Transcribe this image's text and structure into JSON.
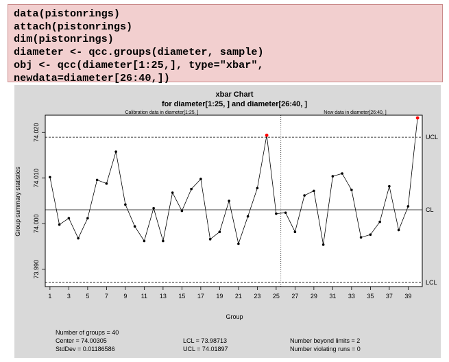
{
  "code": {
    "lines": [
      "data(pistonrings)",
      "attach(pistonrings)",
      "dim(pistonrings)",
      "diameter <- qcc.groups(diameter, sample)",
      "obj <- qcc(diameter[1:25,], type=\"xbar\",",
      "newdata=diameter[26:40,])"
    ]
  },
  "chart_data": {
    "type": "line",
    "title": "xbar Chart",
    "subtitle": "for diameter[1:25, ] and diameter[26:40, ]",
    "calibration_label": "Calibration data in diameter[1:25, ]",
    "newdata_label": "New data in diameter[26:40, ]",
    "xlabel": "Group",
    "ylabel": "Group summary statistics",
    "xlim": [
      0.5,
      40.5
    ],
    "ylim": [
      73.9862,
      74.0238
    ],
    "x_ticks": [
      1,
      3,
      5,
      7,
      9,
      11,
      13,
      15,
      17,
      19,
      21,
      23,
      25,
      27,
      29,
      31,
      33,
      35,
      37,
      39
    ],
    "y_ticks": [
      73.99,
      74.0,
      74.01,
      74.02
    ],
    "y_tick_labels": [
      "73.990",
      "74.000",
      "74.010",
      "74.020"
    ],
    "x": [
      1,
      2,
      3,
      4,
      5,
      6,
      7,
      8,
      9,
      10,
      11,
      12,
      13,
      14,
      15,
      16,
      17,
      18,
      19,
      20,
      21,
      22,
      23,
      24,
      25,
      26,
      27,
      28,
      29,
      30,
      31,
      32,
      33,
      34,
      35,
      36,
      37,
      38,
      39,
      40
    ],
    "values": [
      74.0102,
      73.9998,
      74.0012,
      73.9968,
      74.0012,
      74.0096,
      74.0088,
      74.0158,
      74.0042,
      73.9994,
      73.9962,
      74.0034,
      73.9962,
      74.0068,
      74.0028,
      74.0076,
      74.0098,
      73.9966,
      73.9982,
      74.005,
      73.9956,
      74.0016,
      74.0078,
      74.0194,
      74.0022,
      74.0024,
      73.9982,
      74.0062,
      74.0072,
      73.9954,
      74.0104,
      74.011,
      74.0074,
      73.997,
      73.9976,
      74.0004,
      74.0082,
      73.9986,
      74.0038,
      74.0232
    ],
    "out_of_control_points": [
      24,
      40
    ],
    "new_data_start": 25.5,
    "center": 74.00305,
    "ucl": 74.01897,
    "lcl": 73.98713,
    "limit_labels": {
      "ucl": "UCL",
      "center": "CL",
      "lcl": "LCL"
    },
    "colors": {
      "panel": "#d9d9d9",
      "plot_bg": "#ffffff",
      "line": "#000000",
      "violation": "#ff0000"
    },
    "grid": false
  },
  "summary": {
    "groups": "Number of groups = 40",
    "center": "Center = 74.00305",
    "stddev": "StdDev = 0.01186586",
    "lcl": "LCL = 73.98713",
    "ucl": "UCL = 74.01897",
    "beyond": "Number beyond limits = 2",
    "violating": "Number violating runs = 0"
  }
}
